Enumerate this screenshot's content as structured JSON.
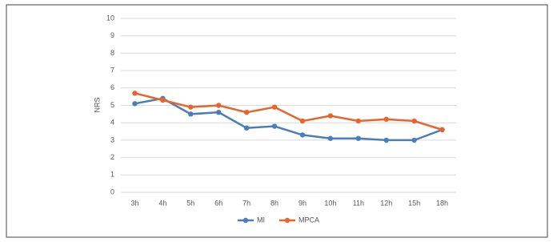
{
  "chart_data": {
    "type": "line",
    "y_label": "NRS",
    "categories": [
      "3h",
      "4h",
      "5h",
      "6h",
      "7h",
      "8h",
      "9h",
      "10h",
      "11h",
      "12h",
      "15h",
      "18h"
    ],
    "series": [
      {
        "name": "MI",
        "color": "#4a7ebb",
        "values": [
          5.1,
          5.4,
          4.5,
          4.6,
          3.7,
          3.8,
          3.3,
          3.1,
          3.1,
          3.0,
          3.0,
          3.6
        ]
      },
      {
        "name": "MPCA",
        "color": "#e8642c",
        "values": [
          5.7,
          5.3,
          4.9,
          5.0,
          4.6,
          4.9,
          4.1,
          4.4,
          4.1,
          4.2,
          4.1,
          3.6
        ]
      }
    ],
    "ylim": [
      0,
      10
    ],
    "yticks": [
      0,
      1,
      2,
      3,
      4,
      5,
      6,
      7,
      8,
      9,
      10
    ],
    "grid": true,
    "legend": "bottom"
  }
}
